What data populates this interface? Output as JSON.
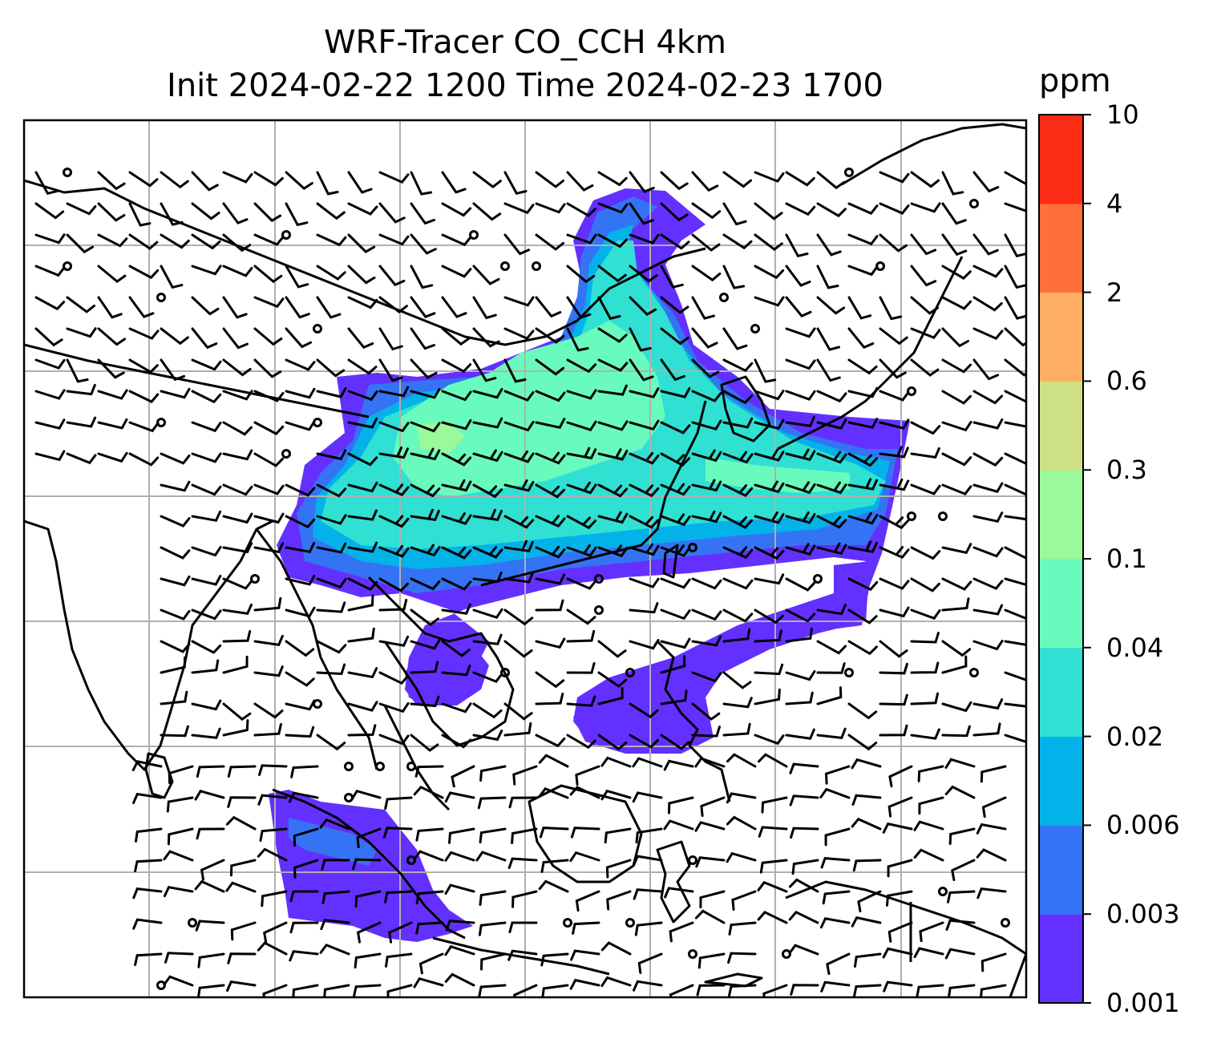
{
  "title": {
    "line1": "WRF-Tracer CO_CCH 4km",
    "line2": "Init 2024-02-22 1200 Time 2024-02-23 1700"
  },
  "colorbar": {
    "unit": "ppm",
    "levels": [
      "0.001",
      "0.003",
      "0.006",
      "0.02",
      "0.04",
      "0.1",
      "0.3",
      "0.6",
      "2",
      "4",
      "10"
    ],
    "colors": [
      "#6330ff",
      "#3474f4",
      "#04b2ea",
      "#2fe0d3",
      "#69fbbd",
      "#99f99b",
      "#cde083",
      "#feae62",
      "#fe7039",
      "#fd2c17"
    ]
  },
  "map": {
    "grid": "on",
    "frame_color": "#000000",
    "gridline_color": "#b0b0b0"
  }
}
